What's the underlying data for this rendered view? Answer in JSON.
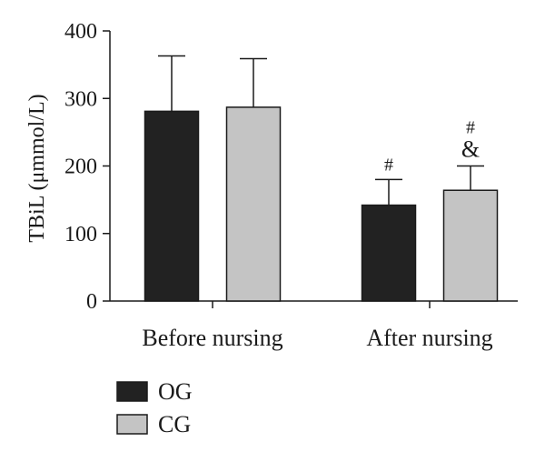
{
  "chart_data": {
    "type": "bar",
    "categories": [
      "Before nursing",
      "After nursing"
    ],
    "series": [
      {
        "name": "OG",
        "values": [
          281,
          142
        ],
        "errors": [
          82,
          38
        ],
        "color": "#222222"
      },
      {
        "name": "CG",
        "values": [
          287,
          164
        ],
        "errors": [
          72,
          36
        ],
        "color": "#c4c4c4"
      }
    ],
    "ylabel": "TBiL (μmmol/L)",
    "ylim": [
      0,
      400
    ],
    "yticks": [
      0,
      100,
      200,
      300,
      400
    ],
    "grid": false,
    "legend_position": "bottom-left",
    "annotations": [
      {
        "category": 1,
        "series": 0,
        "marks": [
          "#"
        ]
      },
      {
        "category": 1,
        "series": 1,
        "marks": [
          "#",
          "&"
        ]
      }
    ]
  }
}
